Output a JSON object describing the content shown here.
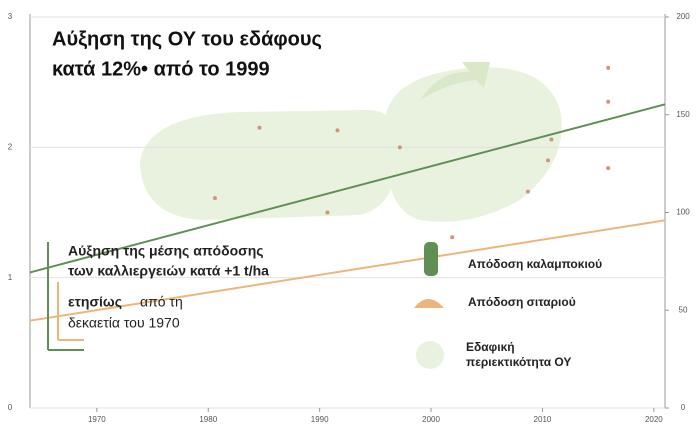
{
  "chart_data": {
    "type": "line",
    "title_lines": [
      "Αύξηση της ΟΥ του εδάφους",
      "κατά 12%• από το 1999"
    ],
    "annotation": [
      "Αύξηση της μέσης απόδοσης",
      "των καλλιεργειών κατά +1 t/ha",
      "ετησίως",
      "από τη",
      "δεκαετία του 1970"
    ],
    "xlim": [
      1964,
      2021
    ],
    "xticks": [
      1970,
      1980,
      1990,
      2000,
      2010,
      2020
    ],
    "ylim": [
      0,
      3
    ],
    "yticks": [
      0,
      1,
      2,
      3
    ],
    "y2lim": [
      0,
      200
    ],
    "y2ticks": [
      0,
      50,
      100,
      150,
      200
    ],
    "grid": true,
    "series": [
      {
        "name": "Απόδοση καλαμποκιού",
        "type": "line",
        "color": "#5f8f55",
        "x": [
          1964,
          2021
        ],
        "values": [
          1.04,
          2.33
        ]
      },
      {
        "name": "Απόδοση σιταριού",
        "type": "line",
        "color": "#ecb67a",
        "x": [
          1964,
          2021
        ],
        "values": [
          0.67,
          1.44
        ]
      },
      {
        "name": "Εδαφική περιεκτικότητα ΟΥ",
        "type": "scatter",
        "color": "#d3947c",
        "x": [
          1980.6,
          1984.6,
          1990.7,
          1991.6,
          1997.2,
          2001.9,
          2008.7,
          2010.5,
          2010.8,
          2015.9,
          2015.9,
          2015.9
        ],
        "values": [
          1.61,
          2.15,
          1.5,
          2.13,
          2.0,
          1.31,
          1.66,
          1.9,
          2.06,
          1.84,
          2.61,
          2.35
        ]
      }
    ]
  }
}
